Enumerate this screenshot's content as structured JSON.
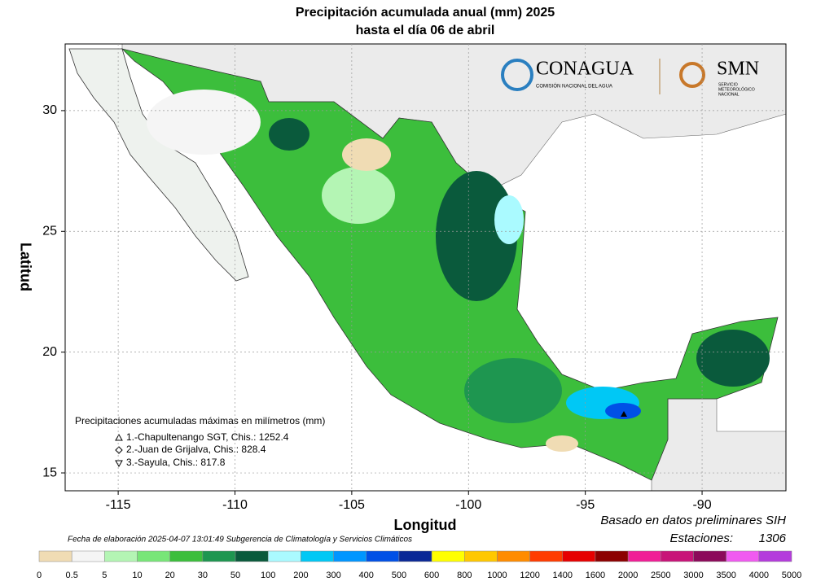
{
  "map": {
    "title": "Precipitación acumulada anual (mm) 2025",
    "subtitle": "hasta el día 06 de abril",
    "xlabel": "Longitud",
    "ylabel": "Latitud",
    "xlim": [
      -117.27,
      -86.41
    ],
    "ylim": [
      14.26,
      32.76
    ],
    "xticks": [
      -115,
      -110,
      -105,
      -100,
      -95,
      -90
    ],
    "yticks": [
      15,
      20,
      25,
      30
    ],
    "grid": true,
    "logo": {
      "conagua": "CONAGUA",
      "conagua_sub": "COMISIÓN NACIONAL DEL AGUA",
      "smn": "SMN",
      "smn_sub": [
        "SERVICIO",
        "METEOROLÓGICO",
        "NACIONAL"
      ]
    },
    "maxima": {
      "title": "Precipitaciones acumuladas máximas en milímetros (mm)",
      "items": [
        "1.-Chapultenango SGT, Chis.: 1252.4",
        "2.-Juan de Grijalva, Chis.: 828.4",
        "3.-Sayula, Chis.: 817.8"
      ]
    },
    "source": "Basado en datos preliminares SIH",
    "stations_label": "Estaciones:",
    "stations": 1306,
    "footer": "Fecha de elaboración 2025-04-07 13:01:49 Subgerencia de Climatología y Servicios Climáticos",
    "legend": {
      "bounds": [
        0,
        0.5,
        5,
        10,
        20,
        30,
        50,
        100,
        200,
        300,
        400,
        500,
        600,
        800,
        1000,
        1200,
        1400,
        1600,
        2000,
        2500,
        3000,
        3500,
        4000,
        5000
      ],
      "colors": [
        "#f0dcb4",
        "#f5f5f5",
        "#b4f5b4",
        "#78e678",
        "#3cbe3c",
        "#1e9650",
        "#0a5a3c",
        "#aafaff",
        "#00c8f5",
        "#0096ff",
        "#0050e6",
        "#0a2896",
        "#ffff00",
        "#ffc800",
        "#ff8c00",
        "#ff3c00",
        "#e60000",
        "#8c0000",
        "#f01e96",
        "#c81478",
        "#8c0a5a",
        "#f05af0",
        "#b43cdc",
        "#7828a0"
      ]
    }
  }
}
